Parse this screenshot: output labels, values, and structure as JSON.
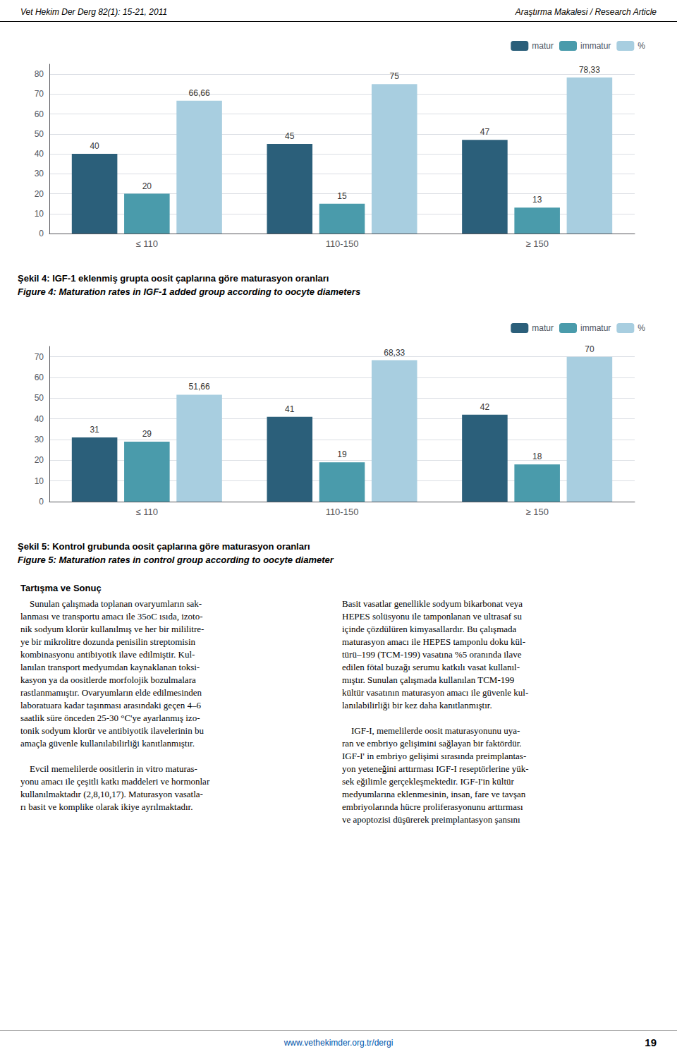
{
  "chart_data": [
    {
      "type": "bar",
      "title": "Şekil 4: IGF-1 eklenmiş grupta oosit çaplarına göre maturasyon oranları",
      "subtitle": "Figure 4: Maturation rates in IGF-1 added group according to oocyte diameters",
      "categories": [
        "≤ 110",
        "110-150",
        "≥ 150"
      ],
      "series": [
        {
          "name": "matur",
          "color": "#2B5F7A",
          "values": [
            40,
            45,
            47
          ]
        },
        {
          "name": "immatur",
          "color": "#4A9BAB",
          "values": [
            20,
            15,
            13
          ]
        },
        {
          "name": "%",
          "color": "#A8CEE0",
          "values": [
            66.66,
            75,
            78.33
          ],
          "value_labels": [
            "66,66",
            "75",
            "78,33"
          ]
        }
      ],
      "ylim": [
        0,
        85
      ],
      "yticks": [
        0,
        10,
        20,
        30,
        40,
        50,
        60,
        70,
        80
      ],
      "grid": true,
      "legend": "upper right",
      "data_labels": true
    },
    {
      "type": "bar",
      "title": "Şekil 5: Kontrol grubunda oosit çaplarına göre maturasyon oranları",
      "subtitle": "Figure 5: Maturation rates in control group according to oocyte diameter",
      "categories": [
        "≤ 110",
        "110-150",
        "≥ 150"
      ],
      "series": [
        {
          "name": "matur",
          "color": "#2B5F7A",
          "values": [
            31,
            41,
            42
          ]
        },
        {
          "name": "immatur",
          "color": "#4A9BAB",
          "values": [
            29,
            19,
            18
          ]
        },
        {
          "name": "%",
          "color": "#A8CEE0",
          "values": [
            51.66,
            68.33,
            70
          ],
          "value_labels": [
            "51,66",
            "68,33",
            "70"
          ]
        }
      ],
      "ylim": [
        0,
        75
      ],
      "yticks": [
        0,
        10,
        20,
        30,
        40,
        50,
        60,
        70
      ],
      "grid": true,
      "legend": "upper right",
      "data_labels": true
    }
  ],
  "annotations": [
    "Vet Hekim Der Derg 82(1): 15-21, 2011",
    "Araştırma Makalesi / Research Article",
    "Tartışma ve Sonuç",
    "    Sunulan çalışmada toplanan ovaryumların sak-\nlanması ve transportu amacı ile 35oC ısıda, izoto-\nnik sodyum klorür kullanılmış ve her bir mililitre-\nye bir mikrolitre dozunda penisilin streptomisin\nkombinasyonu antibiyotik ilave edilmiştir. Kul-\nlanılan transport medyumdan kaynaklanan toksi-\nkasyon ya da oositlerde morfolojik bozulmalara\nrastlanmamıştır. Ovaryumların elde edilmesinden\nlaboratuara kadar taşınması arasındaki geçen 4–6\nsaatlik süre önceden 25-30 °C'ye ayarlanmış izo-\ntonik sodyum klorür ve antibiyotik ilavelerinin bu\namaçla güvenle kullanılabilirliği kanıtlanmıştır.\n\n    Evcil memelilerde oositlerin in vitro maturas-\nyonu amacı ile çeşitli katkı maddeleri ve hormonlar\nkullanılmaktadır (2,8,10,17). Maturasyon vasatla-\nrı basit ve komplike olarak ikiye ayrılmaktadır.",
    "Basit vasatlar genellikle sodyum bikarbonat veya\nHEPES solüsyonu ile tamponlanan ve ultrasaf su\niçinde çözdülüren kimyasallardır. Bu çalışmada\nmaturasyon amacı ile HEPES tamponlu doku kül-\ntürü–199 (TCM-199) vasatına %5 oranında ilave\nedilen fötal buzağı serumu katkılı vasat kullanıl-\nmıştır. Sunulan çalışmada kullanılan TCM-199\nkültür vasatının maturasyon amacı ile güvenle kul-\nlanılabilirliği bir kez daha kanıtlanmıştır.\n\n    IGF-I, memelilerde oosit maturasyonunu uya-\nran ve embriyo gelişimini sağlayan bir faktördür.\nIGF-I' in embriyo gelişimi sırasında preimplantas-\nyon yeteneğini arttırması IGF-I reseptörlerine yük-\nsek eğilimle gerçekleşmektedir. IGF-I'in kültür\nmedyumlarına eklenmesinin, insan, fare ve tavşan\nembriyolarında hücre proliferasyonunu arttırması\nve apoptozisi düşürerek preimplantasyon şansını",
    "www.vethekimder.org.tr/dergi",
    "19"
  ]
}
